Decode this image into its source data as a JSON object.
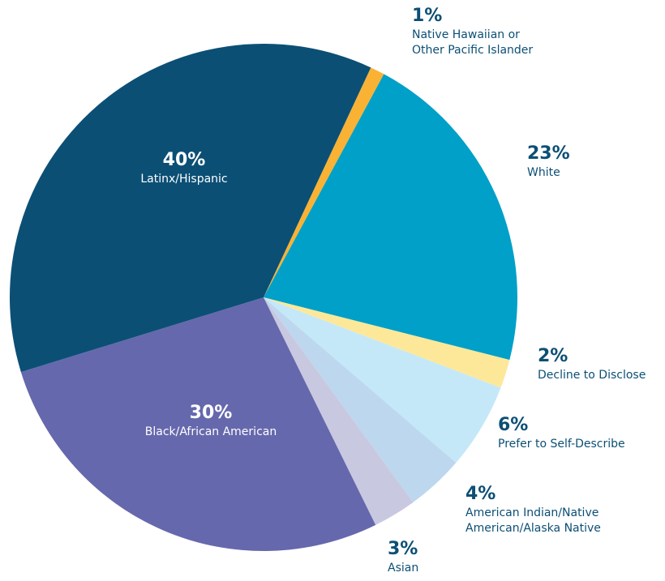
{
  "chart_data": {
    "type": "pie",
    "categories": [
      "Native Hawaiian or Other Pacific Islander",
      "White",
      "Decline to Disclose",
      "Prefer to Self-Describe",
      "American Indian/Native American/Alaska Native",
      "Asian",
      "Black/African American",
      "Latinx/Hispanic"
    ],
    "values": [
      1,
      23,
      2,
      6,
      4,
      3,
      30,
      40
    ],
    "value_labels": [
      "1%",
      "23%",
      "2%",
      "6%",
      "4%",
      "3%",
      "30%",
      "40%"
    ],
    "colors": [
      "#f9b233",
      "#00a0c8",
      "#fde89a",
      "#c5e8f8",
      "#bdd7ee",
      "#c8c8e0",
      "#6668ad",
      "#0b4f75"
    ]
  }
}
